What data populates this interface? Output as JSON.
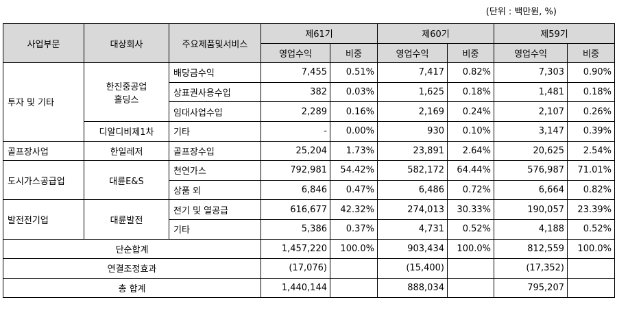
{
  "unit_note": "(단위 : 백만원, %)",
  "headers": {
    "segment": "사업부문",
    "company": "대상회사",
    "product": "주요제품및서비스",
    "periods": [
      "제61기",
      "제60기",
      "제59기"
    ],
    "revenue": "영업수익",
    "ratio": "비중"
  },
  "segments": {
    "invest": "투자 및 기타",
    "golf": "골프장사업",
    "gas": "도시가스공급업",
    "power": "발전전기업"
  },
  "companies": {
    "hanjin_l1": "한진중공업",
    "hanjin_l2": "홀딩스",
    "dialdb": "디알디비제1차",
    "hanil": "한일레저",
    "daeryun_es": "대륜E&S",
    "daeryun_power": "대륜발전"
  },
  "rows": [
    {
      "product": "배당금수익",
      "v": [
        "7,455",
        "0.51%",
        "7,417",
        "0.82%",
        "7,303",
        "0.90%"
      ]
    },
    {
      "product": "상표권사용수입",
      "v": [
        "382",
        "0.03%",
        "1,625",
        "0.18%",
        "1,481",
        "0.18%"
      ]
    },
    {
      "product": "임대사업수입",
      "v": [
        "2,289",
        "0.16%",
        "2,169",
        "0.24%",
        "2,107",
        "0.26%"
      ]
    },
    {
      "product": "기타",
      "v": [
        "-",
        "0.00%",
        "930",
        "0.10%",
        "3,147",
        "0.39%"
      ]
    },
    {
      "product": "골프장수입",
      "v": [
        "25,204",
        "1.73%",
        "23,891",
        "2.64%",
        "20,625",
        "2.54%"
      ]
    },
    {
      "product": "천연가스",
      "v": [
        "792,981",
        "54.42%",
        "582,172",
        "64.44%",
        "576,987",
        "71.01%"
      ]
    },
    {
      "product": "상품 외",
      "v": [
        "6,846",
        "0.47%",
        "6,486",
        "0.72%",
        "6,664",
        "0.82%"
      ]
    },
    {
      "product": "전기 및 열공급",
      "v": [
        "616,677",
        "42.32%",
        "274,013",
        "30.33%",
        "190,057",
        "23.39%"
      ]
    },
    {
      "product": "기타",
      "v": [
        "5,386",
        "0.37%",
        "4,731",
        "0.52%",
        "4,188",
        "0.52%"
      ]
    }
  ],
  "totals": {
    "simple": {
      "label": "단순합계",
      "v": [
        "1,457,220",
        "100.0%",
        "903,434",
        "100.0%",
        "812,559",
        "100.0%"
      ]
    },
    "adjust": {
      "label": "연결조정효과",
      "v": [
        "(17,076)",
        "",
        "(15,400)",
        "",
        "(17,352)",
        ""
      ]
    },
    "grand": {
      "label": "총 합계",
      "v": [
        "1,440,144",
        "",
        "888,034",
        "",
        "795,207",
        ""
      ]
    }
  }
}
